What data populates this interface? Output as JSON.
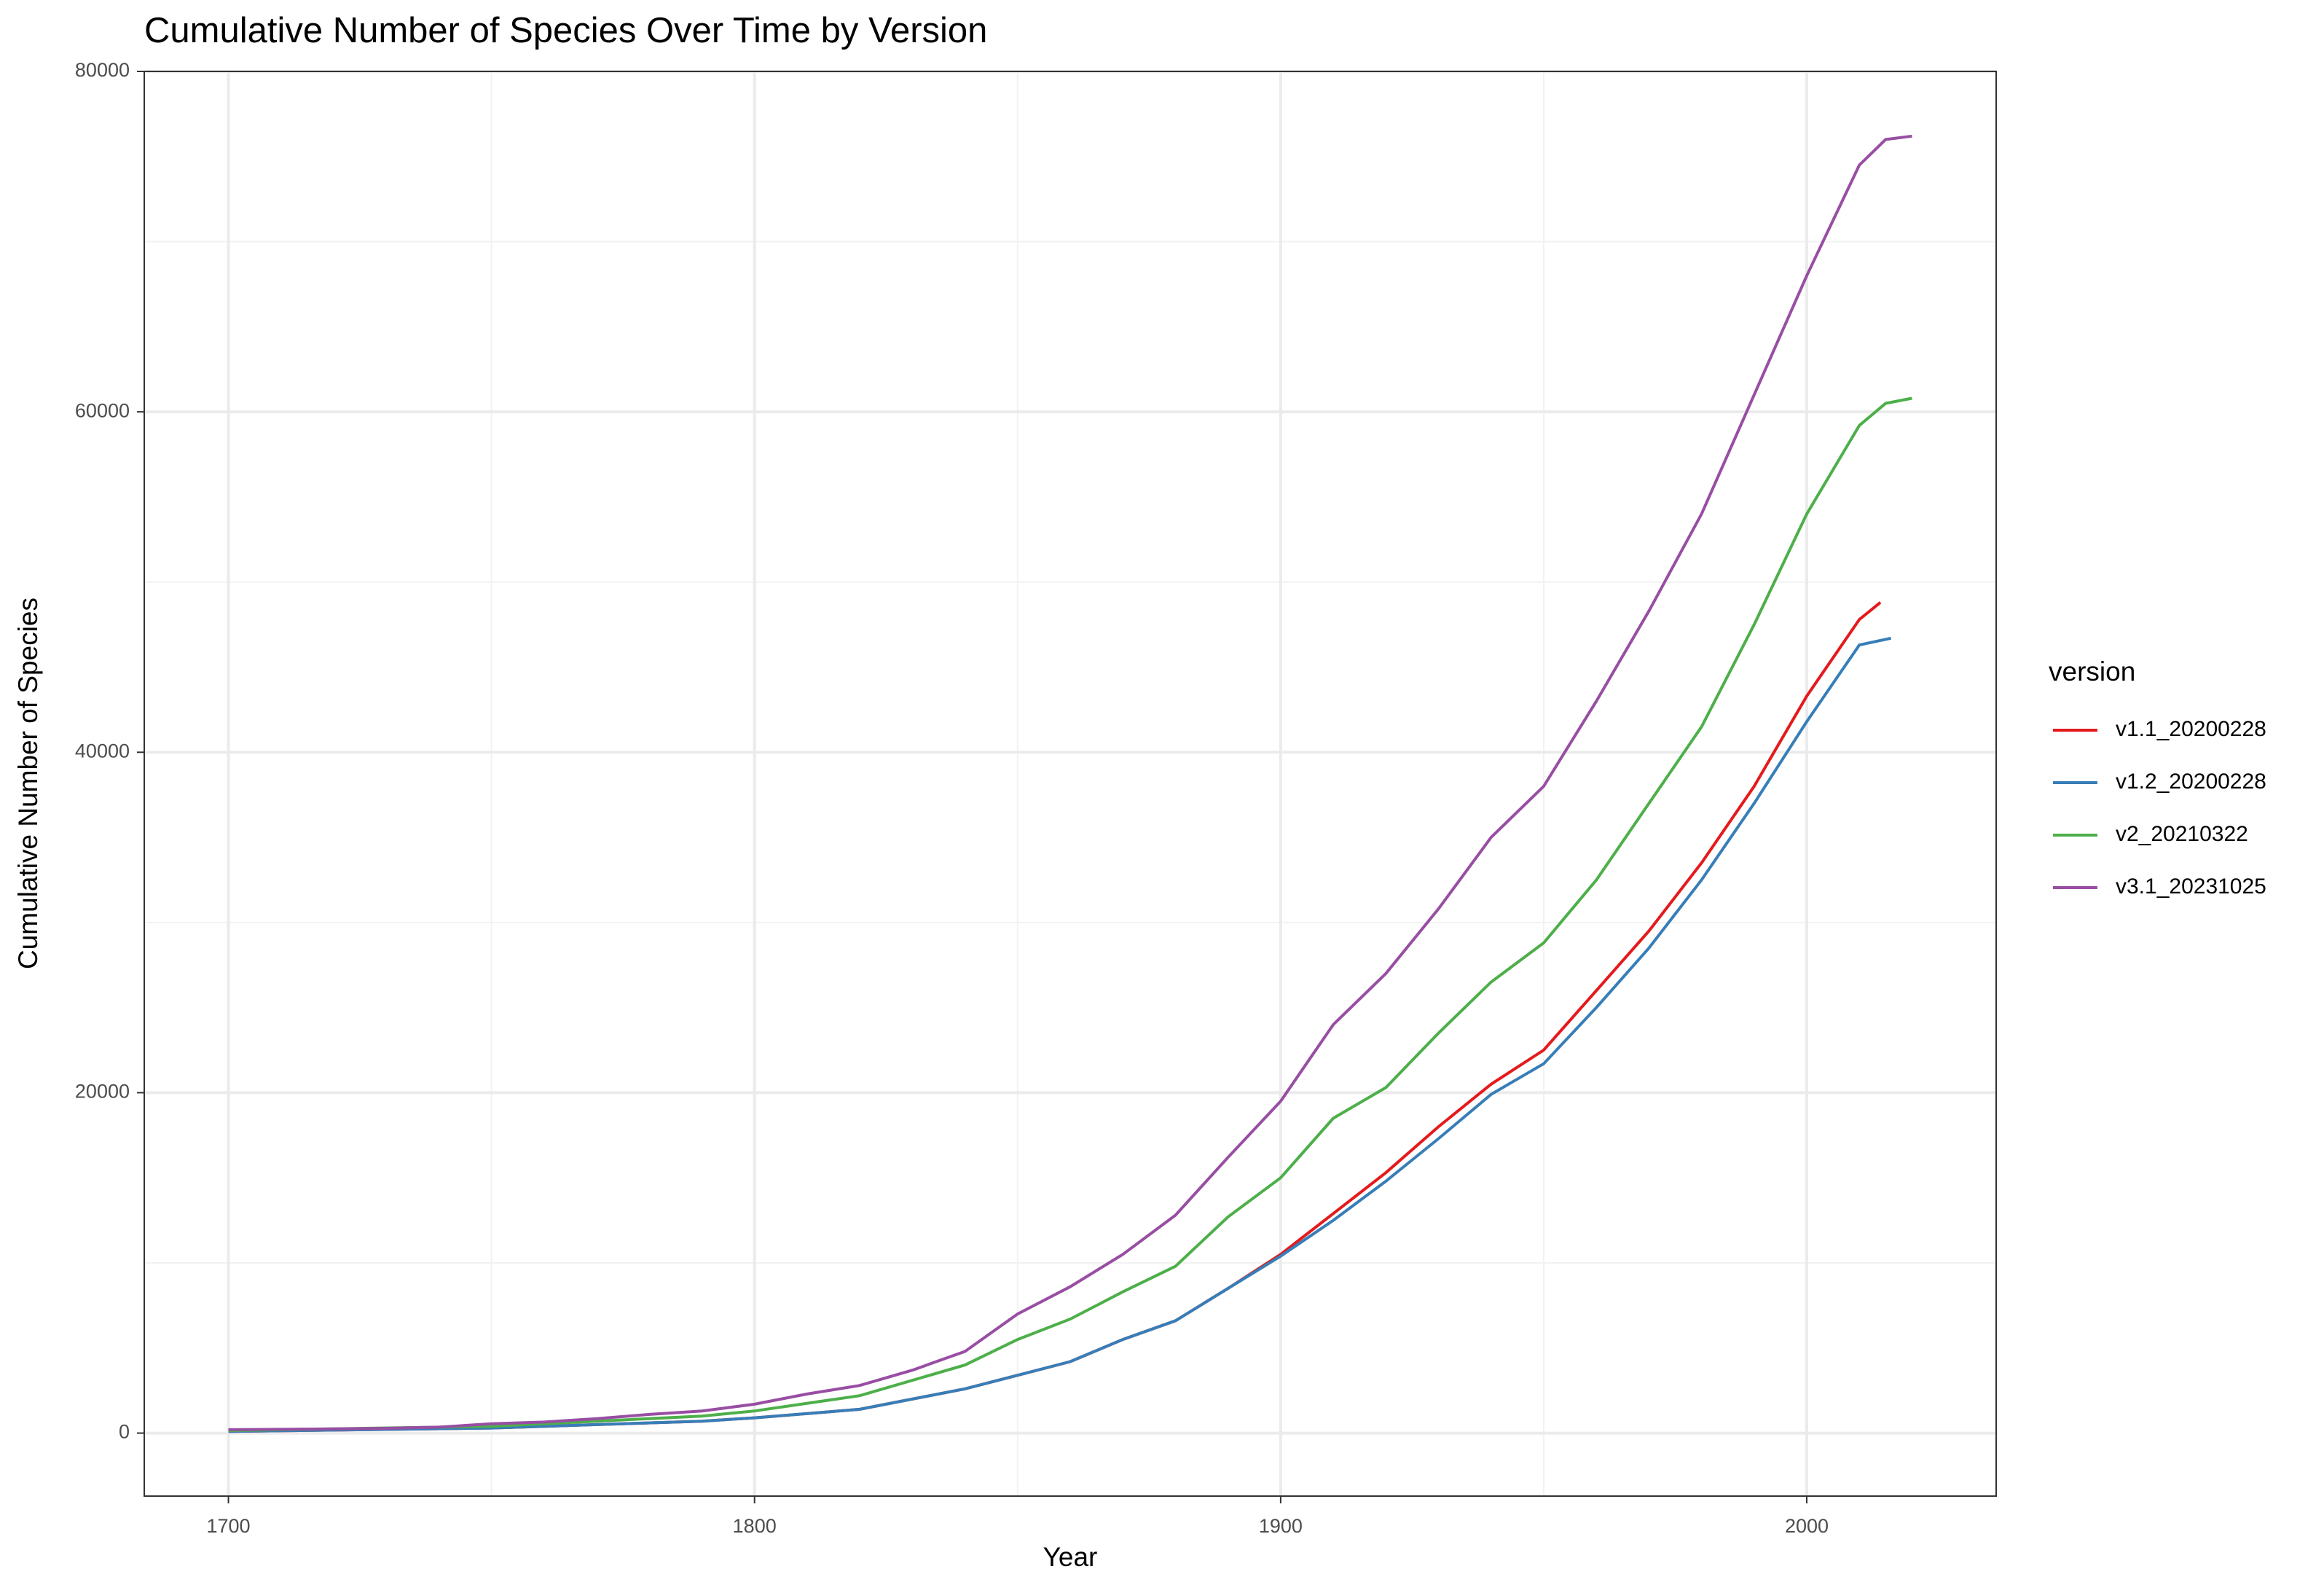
{
  "chart_data": {
    "type": "line",
    "title": "Cumulative Number of Species Over Time by Version",
    "x_label": "Year",
    "y_label": "Cumulative Number of Species",
    "legend_title": "version",
    "legend_position": "right",
    "grid": true,
    "xlim": [
      1684,
      2036
    ],
    "ylim": [
      -3700,
      80000
    ],
    "xticks": [
      1700,
      1800,
      1900,
      2000
    ],
    "yticks": [
      0,
      20000,
      40000,
      60000,
      80000
    ],
    "xminorticks": [
      1750,
      1850,
      1950
    ],
    "yminorticks": [
      10000,
      30000,
      50000,
      70000
    ],
    "series": [
      {
        "name": "v1.1_20200228",
        "color": "#e41a1c",
        "x": [
          1700,
          1750,
          1770,
          1790,
          1800,
          1820,
          1840,
          1850,
          1860,
          1870,
          1880,
          1890,
          1900,
          1910,
          1920,
          1930,
          1940,
          1950,
          1960,
          1970,
          1980,
          1990,
          2000,
          2010,
          2014
        ],
        "values": [
          100,
          300,
          500,
          700,
          900,
          1400,
          2600,
          3400,
          4200,
          5500,
          6600,
          8500,
          10500,
          12900,
          15300,
          18000,
          20500,
          22500,
          26000,
          29500,
          33500,
          38000,
          43300,
          47800,
          48800
        ]
      },
      {
        "name": "v1.2_20200228",
        "color": "#377eb8",
        "x": [
          1700,
          1750,
          1770,
          1790,
          1800,
          1820,
          1840,
          1850,
          1860,
          1870,
          1880,
          1890,
          1900,
          1910,
          1920,
          1930,
          1940,
          1950,
          1960,
          1970,
          1980,
          1990,
          2000,
          2010,
          2016
        ],
        "values": [
          100,
          300,
          500,
          700,
          900,
          1400,
          2600,
          3400,
          4200,
          5500,
          6600,
          8500,
          10400,
          12500,
          14800,
          17300,
          19900,
          21700,
          25000,
          28500,
          32500,
          37000,
          41800,
          46300,
          46700
        ]
      },
      {
        "name": "v2_20210322",
        "color": "#4daf4a",
        "x": [
          1700,
          1750,
          1770,
          1790,
          1800,
          1820,
          1840,
          1850,
          1860,
          1870,
          1880,
          1890,
          1900,
          1910,
          1920,
          1930,
          1940,
          1950,
          1960,
          1970,
          1980,
          1990,
          2000,
          2010,
          2015,
          2020
        ],
        "values": [
          150,
          400,
          700,
          1000,
          1300,
          2200,
          4000,
          5500,
          6700,
          8300,
          9800,
          12700,
          15000,
          18500,
          20300,
          23500,
          26500,
          28800,
          32500,
          37000,
          41500,
          47500,
          54000,
          59200,
          60500,
          60800
        ]
      },
      {
        "name": "v3.1_20231025",
        "color": "#984ea3",
        "x": [
          1700,
          1710,
          1720,
          1730,
          1740,
          1750,
          1760,
          1770,
          1780,
          1790,
          1800,
          1810,
          1820,
          1830,
          1840,
          1850,
          1860,
          1870,
          1880,
          1890,
          1900,
          1910,
          1920,
          1930,
          1940,
          1950,
          1960,
          1970,
          1980,
          1990,
          2000,
          2010,
          2015,
          2020
        ],
        "values": [
          200,
          220,
          250,
          280,
          350,
          550,
          650,
          850,
          1100,
          1300,
          1700,
          2300,
          2800,
          3700,
          4800,
          7000,
          8600,
          10500,
          12800,
          16200,
          19500,
          24000,
          27000,
          30800,
          35000,
          38000,
          43000,
          48300,
          54000,
          61000,
          68000,
          74500,
          76000,
          76200
        ]
      }
    ]
  }
}
